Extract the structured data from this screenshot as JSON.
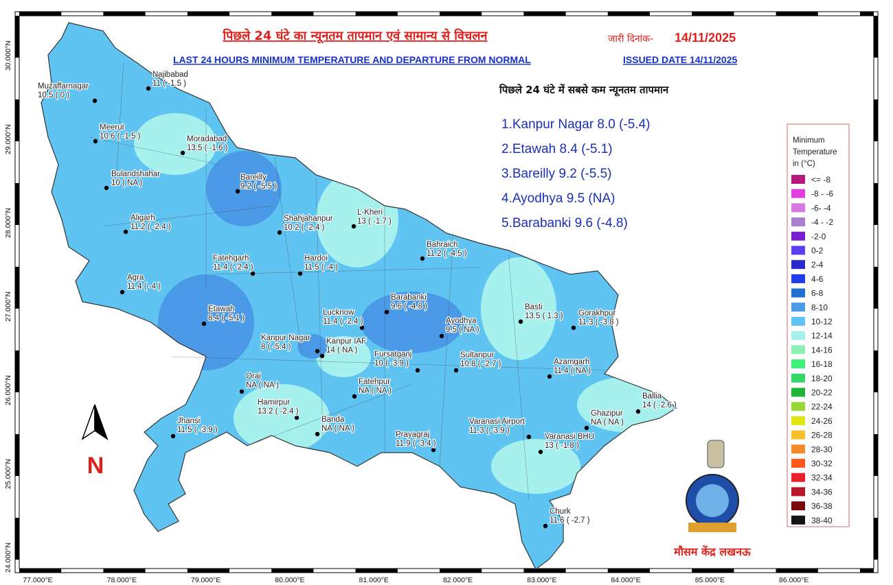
{
  "header": {
    "title_hindi": "पिछले 24 घंटे का न्यूनतम तापमान एवं सामान्य से विचलन",
    "issued_label_hindi": "जारी दिनांक-",
    "issued_date": "14/11/2025",
    "title_english": "LAST 24 HOURS MINIMUM TEMPERATURE AND DEPARTURE FROM NORMAL",
    "issued_english": "ISSUED DATE 14/11/2025"
  },
  "lowest": {
    "title": "पिछले 24 घंटे में सबसे कम न्यूनतम तापमान",
    "items": [
      "1.Kanpur Nagar 8.0 (-5.4)",
      "2.Etawah 8.4 (-5.1)",
      "3.Bareilly 9.2 (-5.5)",
      "4.Ayodhya 9.5 (NA)",
      "5.Barabanki 9.6 (-4.8)"
    ]
  },
  "stations": [
    {
      "name": "Najibabad",
      "reading": "11 ( -1.5 )"
    },
    {
      "name": "Muzaffarnagar",
      "reading": "10.5 ( 0 )"
    },
    {
      "name": "Meerut",
      "reading": "10.6 ( -1.5 )"
    },
    {
      "name": "Moradabad",
      "reading": "13.5 ( -1.6 )"
    },
    {
      "name": "Bulandshahar",
      "reading": "10 ( NA )"
    },
    {
      "name": "Bareilly",
      "reading": "9.2 ( -5.5 )"
    },
    {
      "name": "Aligarh",
      "reading": "11.2 ( -2.4 )"
    },
    {
      "name": "Shahjahanpur",
      "reading": "10.2 ( -2.4 )"
    },
    {
      "name": "L-Kheri",
      "reading": "13 ( -1.7 )"
    },
    {
      "name": "Bahraich",
      "reading": "11.2 ( -4.5 )"
    },
    {
      "name": "Fatehgarh",
      "reading": "11.4 ( -2.4 )"
    },
    {
      "name": "Hardoi",
      "reading": "11.5 ( -4 )"
    },
    {
      "name": "Agra",
      "reading": "11.4 ( -4 )"
    },
    {
      "name": "Barabanki",
      "reading": "9.6 ( -4.8 )"
    },
    {
      "name": "Lucknow",
      "reading": "11.4 ( -2.4 )"
    },
    {
      "name": "Etawah",
      "reading": "8.4 ( -5.1 )"
    },
    {
      "name": "Basti",
      "reading": "13.5 ( 1.3 )"
    },
    {
      "name": "Gorakhpur",
      "reading": "11.3 ( -3.8 )"
    },
    {
      "name": "Ayodhya",
      "reading": "9.5 ( NA )"
    },
    {
      "name": "Kanpur Nagar",
      "reading": "8 ( -5.4 )"
    },
    {
      "name": "Kanpur IAF",
      "reading": "14 ( NA )"
    },
    {
      "name": "Fursatganj",
      "reading": "10 ( -3.9 )"
    },
    {
      "name": "Sultanpur",
      "reading": "10.8 ( -2.7 )"
    },
    {
      "name": "Azamgarh",
      "reading": "11.4 ( NA )"
    },
    {
      "name": "Orai",
      "reading": "NA ( NA )"
    },
    {
      "name": "Fatehpur",
      "reading": "NA ( NA )"
    },
    {
      "name": "Hamirpur",
      "reading": "13.2 ( -2.4 )"
    },
    {
      "name": "Ballia",
      "reading": "14 ( -2.6 )"
    },
    {
      "name": "Ghazipur",
      "reading": "NA ( NA )"
    },
    {
      "name": "Jhansi",
      "reading": "11.5 ( -3.9 )"
    },
    {
      "name": "Banda",
      "reading": "NA ( NA )"
    },
    {
      "name": "Varanasi Airport",
      "reading": "11.3 ( -3.9 )"
    },
    {
      "name": "Varanasi BHU",
      "reading": "13 ( -1.8 )"
    },
    {
      "name": "Prayagraj",
      "reading": "11.9 ( -3.4 )"
    },
    {
      "name": "Churk",
      "reading": "11.6 ( -2.7 )"
    }
  ],
  "legend": {
    "title": [
      "Minimum",
      "Temperature",
      " in (°C)"
    ],
    "items": [
      {
        "label": "<= -8",
        "color": "#b5177b"
      },
      {
        "label": "-8 - -6",
        "color": "#e040e0"
      },
      {
        "label": "-6- -4",
        "color": "#d47ae0"
      },
      {
        "label": "-4 - -2",
        "color": "#a97fd0"
      },
      {
        "label": "-2-0",
        "color": "#7a1ed6"
      },
      {
        "label": "0-2",
        "color": "#5b3ef0"
      },
      {
        "label": "2-4",
        "color": "#2a28c8"
      },
      {
        "label": "4-6",
        "color": "#1e3ce8"
      },
      {
        "label": "6-8",
        "color": "#1f6fd1"
      },
      {
        "label": "8-10",
        "color": "#4a9ae8"
      },
      {
        "label": "10-12",
        "color": "#5fc4f2"
      },
      {
        "label": "12-14",
        "color": "#a6f0ee"
      },
      {
        "label": "14-16",
        "color": "#8ef0b5"
      },
      {
        "label": "16-18",
        "color": "#3cf07a"
      },
      {
        "label": "18-20",
        "color": "#34d86a"
      },
      {
        "label": "20-22",
        "color": "#22b43a"
      },
      {
        "label": "22-24",
        "color": "#98d63a"
      },
      {
        "label": "24-26",
        "color": "#e0e814"
      },
      {
        "label": "26-28",
        "color": "#f8c02a"
      },
      {
        "label": "28-30",
        "color": "#f58a2a"
      },
      {
        "label": "30-32",
        "color": "#ff5a1a"
      },
      {
        "label": "32-34",
        "color": "#e8202a"
      },
      {
        "label": "34-36",
        "color": "#b8142a"
      },
      {
        "label": "36-38",
        "color": "#7a0a10"
      },
      {
        "label": "38-40",
        "color": "#141414"
      }
    ]
  },
  "axes": {
    "lon": [
      {
        "value": 77,
        "label": "77.000°E"
      },
      {
        "value": 78,
        "label": "78.000°E"
      },
      {
        "value": 79,
        "label": "79.000°E"
      },
      {
        "value": 80,
        "label": "80.000°E"
      },
      {
        "value": 81,
        "label": "81.000°E"
      },
      {
        "value": 82,
        "label": "82.000°E"
      },
      {
        "value": 83,
        "label": "83.000°E"
      },
      {
        "value": 84,
        "label": "84.000°E"
      },
      {
        "value": 85,
        "label": "85.000°E"
      },
      {
        "value": 86,
        "label": "86.000°E"
      }
    ],
    "lat": [
      {
        "value": 30,
        "label": "30.000°N"
      },
      {
        "value": 29,
        "label": "29.000°N"
      },
      {
        "value": 28,
        "label": "28.000°N"
      },
      {
        "value": 27,
        "label": "27.000°N"
      },
      {
        "value": 26,
        "label": "26.000°N"
      },
      {
        "value": 25,
        "label": "25.000°N"
      },
      {
        "value": 24,
        "label": "24.000°N"
      }
    ]
  },
  "north_label": "N",
  "office": "मौसम केंद्र लखनऊ"
}
